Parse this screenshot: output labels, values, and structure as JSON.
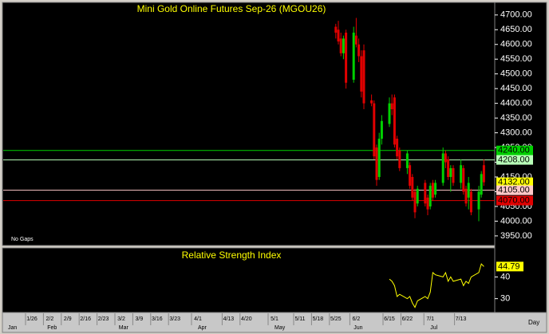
{
  "chart_data": {
    "type": "candlestick",
    "title": "Mini Gold Online Futures Sep-26 (MGOU26)",
    "note": "No Gaps",
    "x": [
      "5/25",
      "5/26",
      "5/27",
      "5/28",
      "5/29",
      "6/1",
      "6/2",
      "6/3",
      "6/4",
      "6/5",
      "6/8",
      "6/9",
      "6/10",
      "6/11",
      "6/12",
      "6/15",
      "6/16",
      "6/17",
      "6/18",
      "6/19",
      "6/22",
      "6/23",
      "6/24",
      "6/25",
      "6/26",
      "6/29",
      "6/30",
      "7/1",
      "7/2",
      "7/3",
      "7/6",
      "7/7",
      "7/8",
      "7/9",
      "7/10",
      "7/13",
      "7/14",
      "7/15",
      "7/16",
      "7/17",
      "7/20",
      "7/21",
      "7/22"
    ],
    "open": [
      4660,
      4650,
      4620,
      4570,
      4640,
      4480,
      4630,
      4600,
      4560,
      4580,
      4410,
      4400,
      4250,
      4150,
      4280,
      4330,
      4400,
      4420,
      4280,
      4240,
      4180,
      4190,
      4150,
      4100,
      4060,
      4130,
      4080,
      4050,
      4130,
      4090,
      4130,
      4230,
      4210,
      4150,
      4180,
      4130,
      4180,
      4110,
      4080,
      4100,
      4040,
      4090,
      4190
    ],
    "high": [
      4670,
      4680,
      4640,
      4630,
      4650,
      4660,
      4690,
      4620,
      4580,
      4600,
      4430,
      4410,
      4260,
      4300,
      4360,
      4420,
      4430,
      4430,
      4290,
      4250,
      4240,
      4200,
      4160,
      4110,
      4120,
      4140,
      4090,
      4130,
      4140,
      4140,
      4250,
      4240,
      4220,
      4190,
      4190,
      4210,
      4190,
      4120,
      4150,
      4110,
      4120,
      4170,
      4210
    ],
    "low": [
      4620,
      4600,
      4560,
      4550,
      4450,
      4470,
      4590,
      4540,
      4420,
      4380,
      4390,
      4210,
      4120,
      4140,
      4260,
      4320,
      4360,
      4250,
      4210,
      4170,
      4160,
      4110,
      4070,
      4010,
      4050,
      4050,
      4020,
      4040,
      4070,
      4080,
      4120,
      4180,
      4140,
      4100,
      4120,
      4110,
      4090,
      4050,
      4040,
      4020,
      4000,
      4080,
      4120
    ],
    "close": [
      4640,
      4610,
      4570,
      4620,
      4470,
      4640,
      4600,
      4560,
      4440,
      4400,
      4400,
      4220,
      4140,
      4280,
      4340,
      4400,
      4380,
      4260,
      4220,
      4180,
      4230,
      4120,
      4080,
      4030,
      4110,
      4060,
      4040,
      4120,
      4080,
      4130,
      4230,
      4200,
      4150,
      4180,
      4130,
      4190,
      4100,
      4060,
      4130,
      4030,
      4100,
      4160,
      4132
    ],
    "up_color": "#00d000",
    "down_color": "#e00000",
    "ylim": [
      3920,
      4740
    ],
    "yticks": [
      {
        "value": 3950,
        "label": "3950.00"
      },
      {
        "value": 4000,
        "label": "4000.00"
      },
      {
        "value": 4050,
        "label": "4050.00"
      },
      {
        "value": 4100,
        "label": "4100.00"
      },
      {
        "value": 4150,
        "label": "4150.00"
      },
      {
        "value": 4200,
        "label": "4200.00"
      },
      {
        "value": 4250,
        "label": "4250.00"
      },
      {
        "value": 4300,
        "label": "4300.00"
      },
      {
        "value": 4350,
        "label": "4350.00"
      },
      {
        "value": 4400,
        "label": "4400.00"
      },
      {
        "value": 4450,
        "label": "4450.00"
      },
      {
        "value": 4500,
        "label": "4500.00"
      },
      {
        "value": 4550,
        "label": "4550.00"
      },
      {
        "value": 4600,
        "label": "4600.00"
      },
      {
        "value": 4650,
        "label": "4650.00"
      },
      {
        "value": 4700,
        "label": "4700.00"
      }
    ],
    "levels": [
      {
        "value": 4240,
        "label": "4240.00",
        "color": "#00d000",
        "line": true
      },
      {
        "value": 4208,
        "label": "4208.00",
        "color": "#b8ffb8",
        "line": true
      },
      {
        "value": 4132,
        "label": "4132.00",
        "color": "#ffff00",
        "line": false
      },
      {
        "value": 4105,
        "label": "4105.00",
        "color": "#ffc8c8",
        "line": true
      },
      {
        "value": 4070,
        "label": "4070.00",
        "color": "#e00000",
        "line": true
      }
    ],
    "xticks": [
      "1/26",
      "2/2",
      "2/9",
      "2/16",
      "2/23",
      "3/2",
      "3/9",
      "3/16",
      "3/23",
      "4/1",
      "4/13",
      "4/20",
      "5/1",
      "5/11",
      "5/18",
      "5/25",
      "6/2",
      "6/15",
      "6/22",
      "7/1",
      "7/13"
    ],
    "months": [
      {
        "value": "1/1",
        "label": "Jan"
      },
      {
        "value": "2/1",
        "label": "Feb"
      },
      {
        "value": "3/1",
        "label": "Mar"
      },
      {
        "value": "4/1",
        "label": "Apr"
      },
      {
        "value": "5/1",
        "label": "May"
      },
      {
        "value": "6/1",
        "label": "Jun"
      },
      {
        "value": "7/1",
        "label": "Jul"
      }
    ],
    "period": "Day",
    "rsi": {
      "title": "Relative Strength Index",
      "color": "#ffff00",
      "values": [
        null,
        null,
        null,
        null,
        null,
        null,
        null,
        null,
        null,
        null,
        null,
        null,
        null,
        null,
        null,
        39,
        38,
        36,
        31,
        32,
        30,
        31,
        28,
        26,
        29,
        31,
        30,
        33,
        42,
        41,
        40,
        42,
        38,
        40,
        38,
        39,
        36,
        38,
        37,
        40,
        42,
        46,
        44.79
      ],
      "ylim": [
        24,
        53
      ],
      "yticks": [
        30,
        40
      ]
    }
  }
}
